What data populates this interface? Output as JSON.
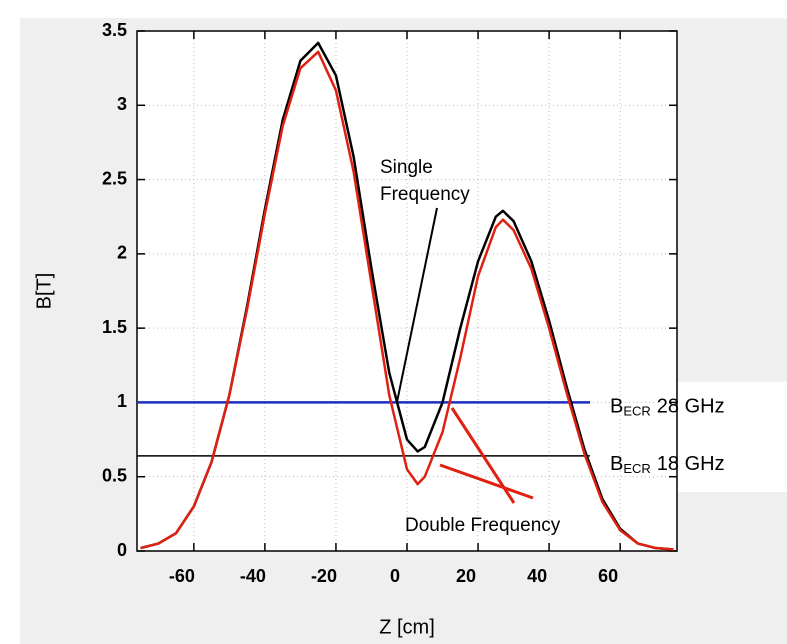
{
  "chart_data": {
    "type": "line",
    "x_label": "Z [cm]",
    "y_label": "B[T]",
    "x": [
      -75,
      -70,
      -65,
      -60,
      -55,
      -50,
      -45,
      -40,
      -35,
      -30,
      -25,
      -20,
      -15,
      -10,
      -5,
      0,
      3,
      5,
      10,
      15,
      20,
      25,
      27,
      30,
      35,
      40,
      45,
      50,
      55,
      60,
      65,
      70,
      75
    ],
    "series": [
      {
        "name": "Single Frequency",
        "color": "#000000",
        "values": [
          0.02,
          0.05,
          0.12,
          0.3,
          0.6,
          1.05,
          1.65,
          2.3,
          2.9,
          3.3,
          3.42,
          3.2,
          2.65,
          1.9,
          1.2,
          0.75,
          0.67,
          0.7,
          1.0,
          1.5,
          1.95,
          2.25,
          2.29,
          2.22,
          1.95,
          1.55,
          1.1,
          0.68,
          0.35,
          0.15,
          0.05,
          0.02,
          0.01
        ]
      },
      {
        "name": "Double Frequency",
        "color": "#e02010",
        "values": [
          0.02,
          0.05,
          0.12,
          0.3,
          0.6,
          1.05,
          1.63,
          2.27,
          2.86,
          3.25,
          3.36,
          3.1,
          2.55,
          1.8,
          1.05,
          0.55,
          0.45,
          0.5,
          0.8,
          1.3,
          1.85,
          2.18,
          2.23,
          2.16,
          1.9,
          1.5,
          1.06,
          0.65,
          0.33,
          0.14,
          0.05,
          0.02,
          0.01
        ]
      }
    ],
    "reference_lines": [
      {
        "value": 1,
        "color": "#1a2fc0",
        "label": {
          "main": "B",
          "sub": "ECR",
          "suffix": "28 GHz"
        }
      },
      {
        "value": 0.64,
        "color": "#000000",
        "label": {
          "main": "B",
          "sub": "ECR",
          "suffix": "18 GHz"
        }
      }
    ],
    "annotations": [
      {
        "lines": [
          "Single",
          "Frequency"
        ],
        "color": "#000000"
      },
      {
        "lines": [
          "Double Frequency"
        ],
        "color": "#e02010"
      }
    ],
    "xlim": [
      -76,
      76
    ],
    "ylim": [
      0,
      3.5
    ],
    "xticks": [
      -60,
      -40,
      -20,
      0,
      20,
      40,
      60
    ],
    "yticks": [
      0,
      0.5,
      1,
      1.5,
      2,
      2.5,
      3,
      3.5
    ],
    "grid": true
  }
}
